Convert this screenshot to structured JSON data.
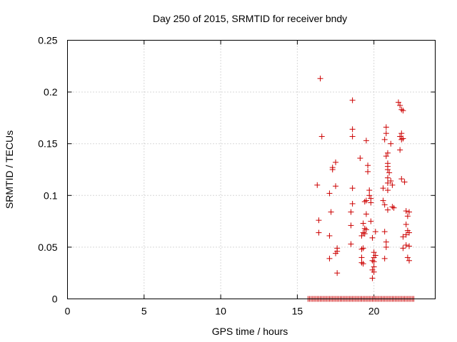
{
  "chart_data": {
    "type": "scatter",
    "title": "Day 250 of 2015, SRMTID for receiver bndy",
    "xlabel": "GPS time / hours",
    "ylabel": "SRMTID / TECUs",
    "xlim": [
      0,
      24
    ],
    "ylim": [
      0,
      0.25
    ],
    "xticks": [
      0,
      5,
      10,
      15,
      20
    ],
    "xtick_labels": [
      "0",
      "5",
      "10",
      "15",
      "20"
    ],
    "yticks": [
      0,
      0.05,
      0.1,
      0.15,
      0.2,
      0.25
    ],
    "ytick_labels": [
      "0",
      "0.05",
      "0.1",
      "0.15",
      "0.2",
      "0.25"
    ],
    "grid": true,
    "series": [
      {
        "name": "SRMTID",
        "color": "#cc0000",
        "marker": "plus",
        "points": [
          [
            16.5,
            0.213
          ],
          [
            18.6,
            0.192
          ],
          [
            21.6,
            0.19
          ],
          [
            21.7,
            0.187
          ],
          [
            21.8,
            0.183
          ],
          [
            21.9,
            0.182
          ],
          [
            20.8,
            0.166
          ],
          [
            18.6,
            0.164
          ],
          [
            16.6,
            0.157
          ],
          [
            18.6,
            0.157
          ],
          [
            20.8,
            0.16
          ],
          [
            21.8,
            0.16
          ],
          [
            21.7,
            0.157
          ],
          [
            21.9,
            0.155
          ],
          [
            21.8,
            0.154
          ],
          [
            20.7,
            0.154
          ],
          [
            19.5,
            0.153
          ],
          [
            21.1,
            0.15
          ],
          [
            21.7,
            0.144
          ],
          [
            20.9,
            0.141
          ],
          [
            20.8,
            0.138
          ],
          [
            19.1,
            0.136
          ],
          [
            17.5,
            0.132
          ],
          [
            20.9,
            0.131
          ],
          [
            19.6,
            0.129
          ],
          [
            20.9,
            0.128
          ],
          [
            17.3,
            0.127
          ],
          [
            17.3,
            0.125
          ],
          [
            20.9,
            0.125
          ],
          [
            21.0,
            0.122
          ],
          [
            19.6,
            0.123
          ],
          [
            20.9,
            0.117
          ],
          [
            21.1,
            0.114
          ],
          [
            21.8,
            0.116
          ],
          [
            20.9,
            0.112
          ],
          [
            22.0,
            0.113
          ],
          [
            16.3,
            0.11
          ],
          [
            17.5,
            0.109
          ],
          [
            21.2,
            0.11
          ],
          [
            18.6,
            0.107
          ],
          [
            20.6,
            0.107
          ],
          [
            19.7,
            0.105
          ],
          [
            20.9,
            0.105
          ],
          [
            17.1,
            0.102
          ],
          [
            19.7,
            0.1
          ],
          [
            19.8,
            0.097
          ],
          [
            19.5,
            0.095
          ],
          [
            19.4,
            0.094
          ],
          [
            20.6,
            0.095
          ],
          [
            19.8,
            0.093
          ],
          [
            18.6,
            0.092
          ],
          [
            20.7,
            0.091
          ],
          [
            21.2,
            0.089
          ],
          [
            21.3,
            0.088
          ],
          [
            20.9,
            0.086
          ],
          [
            22.1,
            0.085
          ],
          [
            22.3,
            0.084
          ],
          [
            18.5,
            0.084
          ],
          [
            17.2,
            0.084
          ],
          [
            19.5,
            0.082
          ],
          [
            22.2,
            0.08
          ],
          [
            16.4,
            0.076
          ],
          [
            19.8,
            0.075
          ],
          [
            19.3,
            0.073
          ],
          [
            22.1,
            0.072
          ],
          [
            18.5,
            0.071
          ],
          [
            19.4,
            0.068
          ],
          [
            19.5,
            0.067
          ],
          [
            22.2,
            0.066
          ],
          [
            16.4,
            0.064
          ],
          [
            19.3,
            0.064
          ],
          [
            19.4,
            0.063
          ],
          [
            22.3,
            0.064
          ],
          [
            20.1,
            0.065
          ],
          [
            20.7,
            0.065
          ],
          [
            22.1,
            0.062
          ],
          [
            21.9,
            0.06
          ],
          [
            17.1,
            0.061
          ],
          [
            19.2,
            0.061
          ],
          [
            19.9,
            0.059
          ],
          [
            20.8,
            0.055
          ],
          [
            18.5,
            0.053
          ],
          [
            22.1,
            0.052
          ],
          [
            22.3,
            0.051
          ],
          [
            21.9,
            0.049
          ],
          [
            19.3,
            0.049
          ],
          [
            19.2,
            0.048
          ],
          [
            17.6,
            0.049
          ],
          [
            20.8,
            0.05
          ],
          [
            17.6,
            0.046
          ],
          [
            17.5,
            0.044
          ],
          [
            20.0,
            0.045
          ],
          [
            20.1,
            0.042
          ],
          [
            20.0,
            0.04
          ],
          [
            19.2,
            0.04
          ],
          [
            17.1,
            0.039
          ],
          [
            20.7,
            0.039
          ],
          [
            22.2,
            0.04
          ],
          [
            22.3,
            0.037
          ],
          [
            19.9,
            0.037
          ],
          [
            20.0,
            0.036
          ],
          [
            19.2,
            0.035
          ],
          [
            19.3,
            0.034
          ],
          [
            20.0,
            0.031
          ],
          [
            19.9,
            0.028
          ],
          [
            20.0,
            0.026
          ],
          [
            17.6,
            0.025
          ],
          [
            19.9,
            0.02
          ],
          [
            15.7,
            0
          ],
          [
            15.8,
            0
          ],
          [
            15.9,
            0
          ],
          [
            16.0,
            0
          ],
          [
            16.1,
            0
          ],
          [
            16.2,
            0
          ],
          [
            16.3,
            0
          ],
          [
            16.4,
            0
          ],
          [
            16.5,
            0
          ],
          [
            16.6,
            0
          ],
          [
            16.7,
            0
          ],
          [
            16.8,
            0
          ],
          [
            16.9,
            0
          ],
          [
            17.0,
            0
          ],
          [
            17.1,
            0
          ],
          [
            17.2,
            0
          ],
          [
            17.3,
            0
          ],
          [
            17.4,
            0
          ],
          [
            17.5,
            0
          ],
          [
            17.6,
            0
          ],
          [
            17.7,
            0
          ],
          [
            17.8,
            0
          ],
          [
            17.9,
            0
          ],
          [
            18.0,
            0
          ],
          [
            18.1,
            0
          ],
          [
            18.2,
            0
          ],
          [
            18.3,
            0
          ],
          [
            18.4,
            0
          ],
          [
            18.5,
            0
          ],
          [
            18.6,
            0
          ],
          [
            18.7,
            0
          ],
          [
            18.8,
            0
          ],
          [
            18.9,
            0
          ],
          [
            19.0,
            0
          ],
          [
            19.1,
            0
          ],
          [
            19.2,
            0
          ],
          [
            19.3,
            0
          ],
          [
            19.4,
            0
          ],
          [
            19.5,
            0
          ],
          [
            19.6,
            0
          ],
          [
            19.7,
            0
          ],
          [
            19.8,
            0
          ],
          [
            19.9,
            0
          ],
          [
            20.0,
            0
          ],
          [
            20.1,
            0
          ],
          [
            20.2,
            0
          ],
          [
            20.3,
            0
          ],
          [
            20.4,
            0
          ],
          [
            20.5,
            0
          ],
          [
            20.6,
            0
          ],
          [
            20.7,
            0
          ],
          [
            20.8,
            0
          ],
          [
            20.9,
            0
          ],
          [
            21.0,
            0
          ],
          [
            21.1,
            0
          ],
          [
            21.2,
            0
          ],
          [
            21.3,
            0
          ],
          [
            21.4,
            0
          ],
          [
            21.5,
            0
          ],
          [
            21.6,
            0
          ],
          [
            21.7,
            0
          ],
          [
            21.8,
            0
          ],
          [
            21.9,
            0
          ],
          [
            22.0,
            0
          ],
          [
            22.1,
            0
          ],
          [
            22.2,
            0
          ],
          [
            22.3,
            0
          ],
          [
            22.4,
            0
          ],
          [
            22.5,
            0
          ],
          [
            22.6,
            0
          ]
        ]
      }
    ]
  }
}
